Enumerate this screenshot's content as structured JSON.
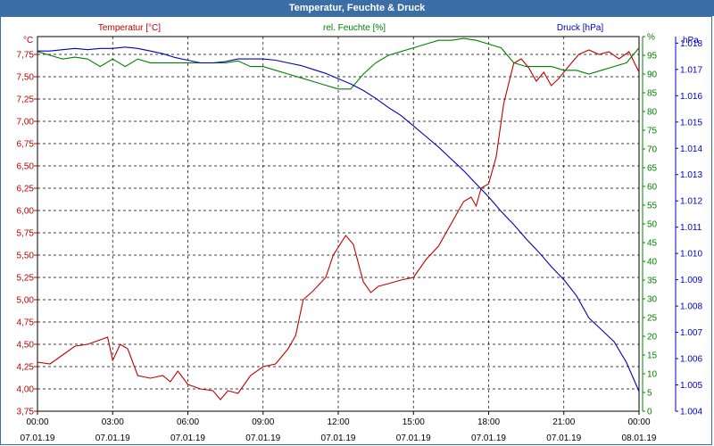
{
  "window": {
    "title": "Temperatur, Feuchte & Druck"
  },
  "colors": {
    "temperature": "#c00000",
    "humidity": "#008000",
    "pressure": "#0000c0",
    "axis": "#000000"
  },
  "chart_data": {
    "type": "line",
    "title": "Temperatur, Feuchte & Druck",
    "grid": true,
    "x_ticks": [
      {
        "time": "00:00",
        "date": "07.01.19"
      },
      {
        "time": "03:00",
        "date": "07.01.19"
      },
      {
        "time": "06:00",
        "date": "07.01.19"
      },
      {
        "time": "09:00",
        "date": "07.01.19"
      },
      {
        "time": "12:00",
        "date": "07.01.19"
      },
      {
        "time": "15:00",
        "date": "07.01.19"
      },
      {
        "time": "18:00",
        "date": "07.01.19"
      },
      {
        "time": "21:00",
        "date": "07.01.19"
      },
      {
        "time": "00:00",
        "date": "08.01.19"
      }
    ],
    "xlim_hours": [
      0,
      24
    ],
    "axes": {
      "temperature": {
        "label": "Temperatur [°C]",
        "unit": "°C",
        "min": 3.75,
        "max": 7.95,
        "ticks": [
          "3,75",
          "4,00",
          "4,25",
          "4,50",
          "4,75",
          "5,00",
          "5,25",
          "5,50",
          "5,75",
          "6,00",
          "6,25",
          "6,50",
          "6,75",
          "7,00",
          "7,25",
          "7,50",
          "7,75"
        ]
      },
      "humidity": {
        "label": "rel. Feuchte [%]",
        "unit": "%",
        "min": 0,
        "max": 100,
        "ticks": [
          "0",
          "5",
          "10",
          "15",
          "20",
          "25",
          "30",
          "35",
          "40",
          "45",
          "50",
          "55",
          "60",
          "65",
          "70",
          "75",
          "80",
          "85",
          "90",
          "95",
          "%"
        ]
      },
      "pressure": {
        "label": "Druck [hPa]",
        "unit": "hPa",
        "min": 1004.0,
        "max": 1018.25,
        "ticks": [
          "1.004",
          "1.005",
          "1.006",
          "1.007",
          "1.008",
          "1.009",
          "1.010",
          "1.011",
          "1.012",
          "1.013",
          "1.014",
          "1.015",
          "1.016",
          "1.017",
          "1.018"
        ]
      }
    },
    "series": [
      {
        "name": "Temperatur",
        "axis": "temperature",
        "points": [
          [
            0,
            4.3
          ],
          [
            0.5,
            4.28
          ],
          [
            1,
            4.38
          ],
          [
            1.5,
            4.48
          ],
          [
            2,
            4.5
          ],
          [
            2.5,
            4.55
          ],
          [
            2.8,
            4.58
          ],
          [
            3,
            4.32
          ],
          [
            3.3,
            4.5
          ],
          [
            3.6,
            4.45
          ],
          [
            4,
            4.15
          ],
          [
            4.5,
            4.12
          ],
          [
            5,
            4.15
          ],
          [
            5.3,
            4.08
          ],
          [
            5.6,
            4.2
          ],
          [
            6,
            4.05
          ],
          [
            6.5,
            4.0
          ],
          [
            7,
            3.98
          ],
          [
            7.3,
            3.88
          ],
          [
            7.6,
            3.98
          ],
          [
            8,
            3.95
          ],
          [
            8.5,
            4.15
          ],
          [
            9,
            4.25
          ],
          [
            9.5,
            4.28
          ],
          [
            10,
            4.45
          ],
          [
            10.3,
            4.6
          ],
          [
            10.6,
            5.0
          ],
          [
            11,
            5.1
          ],
          [
            11.5,
            5.25
          ],
          [
            11.8,
            5.5
          ],
          [
            12.3,
            5.72
          ],
          [
            12.6,
            5.62
          ],
          [
            13,
            5.2
          ],
          [
            13.3,
            5.08
          ],
          [
            13.6,
            5.15
          ],
          [
            14,
            5.18
          ],
          [
            14.5,
            5.22
          ],
          [
            15,
            5.25
          ],
          [
            15.5,
            5.45
          ],
          [
            16,
            5.6
          ],
          [
            16.5,
            5.85
          ],
          [
            17,
            6.1
          ],
          [
            17.3,
            6.15
          ],
          [
            17.5,
            6.05
          ],
          [
            17.7,
            6.25
          ],
          [
            18,
            6.3
          ],
          [
            18.3,
            6.6
          ],
          [
            18.6,
            7.2
          ],
          [
            19,
            7.65
          ],
          [
            19.3,
            7.7
          ],
          [
            19.6,
            7.6
          ],
          [
            19.9,
            7.45
          ],
          [
            20.2,
            7.55
          ],
          [
            20.5,
            7.4
          ],
          [
            20.8,
            7.48
          ],
          [
            21.2,
            7.62
          ],
          [
            21.6,
            7.75
          ],
          [
            22,
            7.8
          ],
          [
            22.4,
            7.75
          ],
          [
            22.8,
            7.78
          ],
          [
            23.2,
            7.7
          ],
          [
            23.6,
            7.78
          ],
          [
            24,
            7.55
          ]
        ]
      },
      {
        "name": "rel. Feuchte",
        "axis": "humidity",
        "points": [
          [
            0,
            96
          ],
          [
            0.5,
            95
          ],
          [
            1,
            94
          ],
          [
            1.5,
            94.5
          ],
          [
            2,
            94
          ],
          [
            2.5,
            92
          ],
          [
            3,
            94
          ],
          [
            3.5,
            92
          ],
          [
            4,
            94
          ],
          [
            4.5,
            93
          ],
          [
            5,
            93
          ],
          [
            5.5,
            93
          ],
          [
            6,
            93
          ],
          [
            6.5,
            93
          ],
          [
            7,
            93
          ],
          [
            7.5,
            93
          ],
          [
            8,
            93.5
          ],
          [
            8.5,
            92
          ],
          [
            9,
            92
          ],
          [
            9.5,
            91
          ],
          [
            10,
            90
          ],
          [
            10.5,
            89
          ],
          [
            11,
            88
          ],
          [
            11.5,
            87
          ],
          [
            12,
            86
          ],
          [
            12.5,
            86
          ],
          [
            13,
            90
          ],
          [
            13.5,
            93
          ],
          [
            14,
            95
          ],
          [
            14.5,
            96
          ],
          [
            15,
            97
          ],
          [
            15.5,
            98
          ],
          [
            16,
            99
          ],
          [
            16.5,
            99
          ],
          [
            17,
            99.5
          ],
          [
            17.5,
            99
          ],
          [
            18,
            98
          ],
          [
            18.5,
            97
          ],
          [
            19,
            93
          ],
          [
            19.5,
            92
          ],
          [
            20,
            92
          ],
          [
            20.5,
            92
          ],
          [
            21,
            91
          ],
          [
            21.5,
            91
          ],
          [
            22,
            90
          ],
          [
            22.5,
            91
          ],
          [
            23,
            92
          ],
          [
            23.5,
            93
          ],
          [
            24,
            97
          ]
        ]
      },
      {
        "name": "Druck",
        "axis": "pressure",
        "points": [
          [
            0,
            1017.7
          ],
          [
            0.5,
            1017.7
          ],
          [
            1,
            1017.75
          ],
          [
            1.5,
            1017.8
          ],
          [
            2,
            1017.75
          ],
          [
            2.5,
            1017.8
          ],
          [
            3,
            1017.8
          ],
          [
            3.5,
            1017.85
          ],
          [
            4,
            1017.8
          ],
          [
            4.5,
            1017.7
          ],
          [
            5,
            1017.6
          ],
          [
            5.5,
            1017.45
          ],
          [
            6,
            1017.35
          ],
          [
            6.5,
            1017.25
          ],
          [
            7,
            1017.25
          ],
          [
            7.5,
            1017.3
          ],
          [
            8,
            1017.4
          ],
          [
            8.5,
            1017.4
          ],
          [
            9,
            1017.4
          ],
          [
            9.5,
            1017.35
          ],
          [
            10,
            1017.25
          ],
          [
            10.5,
            1017.15
          ],
          [
            11,
            1017.0
          ],
          [
            11.5,
            1016.85
          ],
          [
            12,
            1016.65
          ],
          [
            12.5,
            1016.45
          ],
          [
            13,
            1016.2
          ],
          [
            13.5,
            1015.9
          ],
          [
            14,
            1015.55
          ],
          [
            14.5,
            1015.25
          ],
          [
            15,
            1014.85
          ],
          [
            15.5,
            1014.45
          ],
          [
            16,
            1014.05
          ],
          [
            16.5,
            1013.6
          ],
          [
            17,
            1013.15
          ],
          [
            17.5,
            1012.65
          ],
          [
            18,
            1012.15
          ],
          [
            18.5,
            1011.6
          ],
          [
            19,
            1011.1
          ],
          [
            19.5,
            1010.55
          ],
          [
            20,
            1010.05
          ],
          [
            20.5,
            1009.5
          ],
          [
            21,
            1009.0
          ],
          [
            21.5,
            1008.4
          ],
          [
            22,
            1007.55
          ],
          [
            22.5,
            1007.1
          ],
          [
            23,
            1006.65
          ],
          [
            23.5,
            1005.85
          ],
          [
            24,
            1004.75
          ]
        ]
      }
    ]
  }
}
